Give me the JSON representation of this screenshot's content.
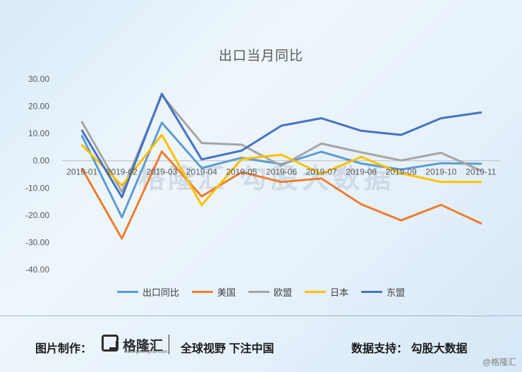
{
  "chart_data": {
    "type": "line",
    "title": "出口当月同比",
    "categories": [
      "2019-01",
      "2019-02",
      "2019-03",
      "2019-04",
      "2019-05",
      "2019-06",
      "2019-07",
      "2019-08",
      "2019-09",
      "2019-10",
      "2019-11"
    ],
    "ylim": [
      -40,
      30
    ],
    "yticks": [
      "30.00",
      "20.00",
      "10.00",
      "0.00",
      "-10.00",
      "-20.00",
      "-30.00",
      "-40.00"
    ],
    "ytick_values": [
      30,
      20,
      10,
      0,
      -10,
      -20,
      -30,
      -40
    ],
    "grid": false,
    "legend_position": "bottom",
    "series": [
      {
        "name": "出口同比",
        "color": "#5b9bd5",
        "values": [
          9.1,
          -20.8,
          14.0,
          -2.7,
          1.1,
          -1.3,
          3.3,
          -1.0,
          -3.2,
          -0.9,
          -1.1
        ]
      },
      {
        "name": "美国",
        "color": "#ed7d31",
        "values": [
          -2.9,
          -28.6,
          3.4,
          -13.1,
          -4.2,
          -7.8,
          -6.5,
          -16.0,
          -21.9,
          -16.2,
          -23.0
        ]
      },
      {
        "name": "欧盟",
        "color": "#a5a5a5",
        "values": [
          14.2,
          -11.4,
          24.1,
          6.5,
          5.9,
          -1.9,
          6.3,
          3.1,
          0.1,
          2.9,
          -3.6
        ]
      },
      {
        "name": "日本",
        "color": "#ffc000",
        "values": [
          5.7,
          -9.1,
          9.5,
          -16.3,
          0.6,
          2.2,
          -4.8,
          1.4,
          -4.6,
          -7.8,
          -7.8
        ]
      },
      {
        "name": "东盟",
        "color": "#4472c4",
        "values": [
          11.1,
          -13.4,
          24.6,
          0.5,
          3.7,
          12.9,
          15.6,
          11.0,
          9.5,
          15.6,
          17.7
        ]
      }
    ]
  },
  "footer": {
    "credit_left": "图片制作：",
    "logo_text": "格隆汇",
    "logo_url": "www.gelonghui.com",
    "slogan": "全球视野 下注中国",
    "credit_right": "数据支持：  勾股大数据",
    "corner_watermark": "@格隆汇"
  },
  "watermark": {
    "left": "格隆汇",
    "right": "勾股大数据"
  }
}
